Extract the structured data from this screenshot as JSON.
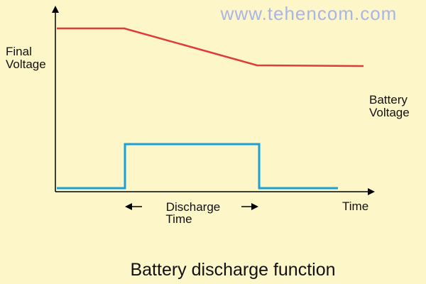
{
  "watermark": "www.tehencom.com",
  "labels": {
    "final_voltage": [
      "Final",
      "Voltage"
    ],
    "battery_voltage": [
      "Battery",
      "Voltage"
    ],
    "time": "Time",
    "discharge_time": [
      "Discharge",
      "Time"
    ]
  },
  "caption": "Battery discharge function"
}
